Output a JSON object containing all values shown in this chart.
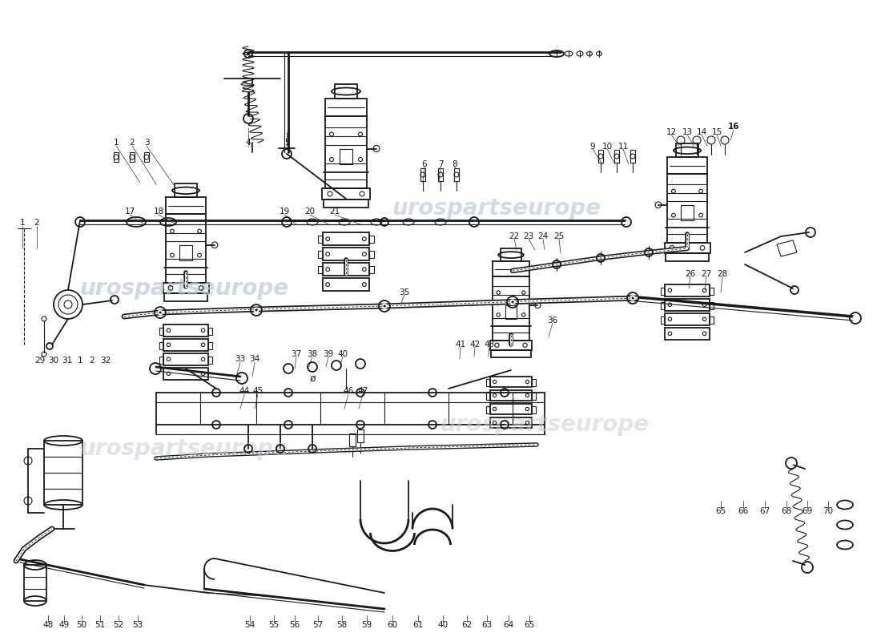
{
  "bg_color": "#ffffff",
  "line_color": "#1a1a1a",
  "wm_color1": "#b8c8d8",
  "wm_color2": "#c0ccd8",
  "wm_text": "urospartseurope",
  "figsize": [
    11.0,
    8.0
  ],
  "dpi": 100
}
